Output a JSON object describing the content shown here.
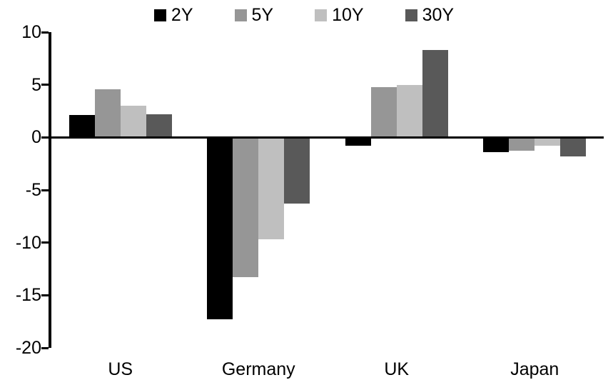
{
  "chart_data": {
    "type": "bar",
    "title": "",
    "xlabel": "",
    "ylabel": "",
    "categories": [
      "US",
      "Germany",
      "UK",
      "Japan"
    ],
    "series": [
      {
        "name": "2Y",
        "color": "#000000",
        "values": [
          2.1,
          -17.3,
          -0.8,
          -1.4
        ]
      },
      {
        "name": "5Y",
        "color": "#969696",
        "values": [
          4.6,
          -13.3,
          4.8,
          -1.3
        ]
      },
      {
        "name": "10Y",
        "color": "#bfbfbf",
        "values": [
          3.0,
          -9.7,
          5.0,
          -0.8
        ]
      },
      {
        "name": "30Y",
        "color": "#595959",
        "values": [
          2.2,
          -6.3,
          8.3,
          -1.8
        ]
      }
    ],
    "ylim": [
      -20,
      10
    ],
    "yticks": [
      "10",
      "5",
      "0",
      "-5",
      "-10",
      "-15",
      "-20"
    ],
    "legend_position": "top",
    "grid": false,
    "background": "#ffffff",
    "axis_color": "#000000"
  }
}
